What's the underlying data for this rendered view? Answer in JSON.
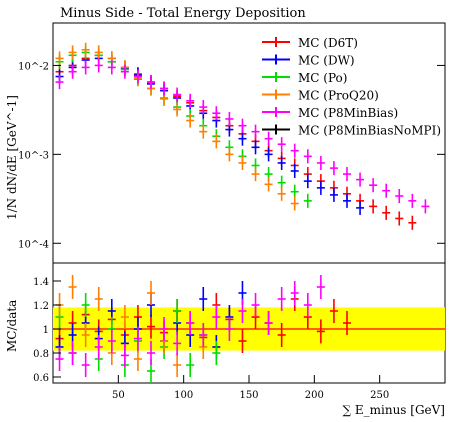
{
  "chart_data": [
    {
      "type": "scatter",
      "title": "Minus Side - Total Energy Deposition",
      "ylabel": "1/N dN/dE [GeV^-1]",
      "yscale": "log",
      "ylim": [
        6e-05,
        0.03
      ],
      "xlim": [
        0,
        300
      ],
      "yticks": [
        {
          "value": 0.0001,
          "label": "10^-4"
        },
        {
          "value": 0.001,
          "label": "10^-3"
        },
        {
          "value": 0.01,
          "label": "10^-2"
        }
      ],
      "legend_position": "top-right",
      "series": [
        {
          "name": "MC (D6T)",
          "color": "#ff0000",
          "x": [
            5,
            15,
            25,
            35,
            45,
            55,
            65,
            75,
            85,
            95,
            105,
            115,
            125,
            135,
            145,
            155,
            165,
            175,
            185,
            195,
            205,
            215,
            225,
            235,
            245,
            255,
            265,
            275
          ],
          "values": [
            0.0085,
            0.01,
            0.012,
            0.013,
            0.012,
            0.0095,
            0.008,
            0.0065,
            0.0055,
            0.0045,
            0.0038,
            0.0031,
            0.0026,
            0.0021,
            0.0017,
            0.0014,
            0.0011,
            0.0009,
            0.00075,
            0.0006,
            0.0005,
            0.00042,
            0.00036,
            0.0003,
            0.00026,
            0.00022,
            0.00019,
            0.00017
          ]
        },
        {
          "name": "MC (DW)",
          "color": "#0000ff",
          "x": [
            5,
            15,
            25,
            35,
            45,
            55,
            65,
            75,
            85,
            95,
            105,
            115,
            125,
            135,
            145,
            155,
            165,
            175,
            185,
            195,
            205,
            215,
            225,
            235
          ],
          "values": [
            0.0075,
            0.0095,
            0.0115,
            0.012,
            0.011,
            0.0092,
            0.0078,
            0.0062,
            0.0052,
            0.0043,
            0.0035,
            0.0029,
            0.0024,
            0.0019,
            0.0015,
            0.0012,
            0.001,
            0.0008,
            0.00065,
            0.0005,
            0.00042,
            0.00035,
            0.0003,
            0.00025
          ]
        },
        {
          "name": "MC (Po)",
          "color": "#00dd00",
          "x": [
            5,
            15,
            25,
            35,
            45,
            55,
            65,
            75,
            85,
            95,
            105,
            115,
            125,
            135,
            145,
            155,
            165,
            175,
            185,
            195
          ],
          "values": [
            0.011,
            0.013,
            0.014,
            0.013,
            0.011,
            0.009,
            0.007,
            0.0055,
            0.0043,
            0.0034,
            0.0027,
            0.0021,
            0.0016,
            0.0012,
            0.00095,
            0.00075,
            0.0006,
            0.00048,
            0.00038,
            0.0003
          ]
        },
        {
          "name": "MC (ProQ20)",
          "color": "#ff8000",
          "x": [
            5,
            15,
            25,
            35,
            45,
            55,
            65,
            75,
            85,
            95,
            105,
            115,
            125,
            135,
            145,
            155,
            165,
            175,
            185
          ],
          "values": [
            0.012,
            0.014,
            0.015,
            0.014,
            0.012,
            0.0095,
            0.0072,
            0.0055,
            0.0042,
            0.0032,
            0.0024,
            0.0018,
            0.0014,
            0.001,
            0.0008,
            0.0006,
            0.00046,
            0.00036,
            0.00028
          ]
        },
        {
          "name": "MC (P8MinBias)",
          "color": "#ff00ff",
          "x": [
            5,
            15,
            25,
            35,
            45,
            55,
            65,
            75,
            85,
            95,
            105,
            115,
            125,
            135,
            145,
            155,
            165,
            175,
            185,
            195,
            205,
            215,
            225,
            235,
            245,
            255,
            265,
            275,
            285
          ],
          "values": [
            0.0065,
            0.0085,
            0.0095,
            0.01,
            0.0095,
            0.0085,
            0.0075,
            0.0065,
            0.0055,
            0.0047,
            0.004,
            0.0034,
            0.0029,
            0.0025,
            0.0021,
            0.0018,
            0.0015,
            0.0013,
            0.0011,
            0.00095,
            0.0008,
            0.0007,
            0.0006,
            0.00052,
            0.00045,
            0.00039,
            0.00034,
            0.0003,
            0.00026
          ]
        },
        {
          "name": "MC (P8MinBiasNoMPI)",
          "color": "#000000",
          "x": [],
          "values": []
        }
      ]
    },
    {
      "type": "scatter",
      "ylabel": "MC/data",
      "xlabel": "∑ E_minus [GeV]",
      "xlim": [
        0,
        300
      ],
      "ylim": [
        0.55,
        1.55
      ],
      "xticks": [
        50,
        100,
        150,
        200,
        250
      ],
      "yticks": [
        0.6,
        0.8,
        1,
        1.2,
        1.4
      ],
      "reference_line": 1,
      "reference_color": "#ff0000",
      "band_color": "#ffff00",
      "series": [
        {
          "name": "MC (D6T)",
          "color": "#ff0000",
          "x": [
            5,
            15,
            25,
            35,
            45,
            55,
            65,
            75,
            85,
            95,
            105,
            115,
            125,
            135,
            145,
            155,
            165,
            175,
            185,
            195,
            205,
            215,
            225
          ],
          "values": [
            0.92,
            1.05,
            1.12,
            0.98,
            1.08,
            0.95,
            1.1,
            1.02,
            0.97,
            1.15,
            1.05,
            0.93,
            1.2,
            1.08,
            0.9,
            1.1,
            1.05,
            0.95,
            1.25,
            1.1,
            0.98,
            1.15,
            1.05
          ]
        },
        {
          "name": "MC (DW)",
          "color": "#0000ff",
          "x": [
            5,
            15,
            25,
            35,
            45,
            55,
            65,
            75,
            85,
            95,
            105,
            115,
            125,
            135,
            145
          ],
          "values": [
            0.85,
            0.95,
            1.05,
            0.92,
            1.15,
            0.88,
            1.0,
            1.2,
            0.9,
            1.05,
            0.95,
            1.25,
            0.85,
            1.1,
            1.3
          ]
        },
        {
          "name": "MC (Po)",
          "color": "#00dd00",
          "x": [
            5,
            15,
            25,
            35,
            45,
            55,
            65,
            75,
            85,
            95,
            105,
            115,
            125
          ],
          "values": [
            1.1,
            0.8,
            1.2,
            0.75,
            1.0,
            0.7,
            0.9,
            0.65,
            0.85,
            1.15,
            0.7,
            0.95,
            0.8
          ]
        },
        {
          "name": "MC (ProQ20)",
          "color": "#ff8000",
          "x": [
            5,
            15,
            25,
            35,
            45,
            55,
            65,
            75,
            85,
            95,
            105,
            115
          ],
          "values": [
            1.2,
            1.35,
            0.95,
            1.25,
            0.8,
            1.1,
            0.75,
            1.3,
            0.9,
            0.7,
            1.05,
            0.85
          ]
        },
        {
          "name": "MC (P8MinBias)",
          "color": "#ff00ff",
          "x": [
            5,
            15,
            25,
            35,
            45,
            55,
            65,
            75,
            85,
            95,
            105,
            115,
            125,
            135,
            145,
            155,
            165,
            175,
            185,
            195,
            205
          ],
          "values": [
            0.75,
            0.8,
            0.7,
            0.85,
            0.9,
            0.78,
            0.92,
            0.8,
            1.0,
            0.88,
            1.05,
            0.95,
            1.1,
            1.0,
            1.15,
            1.2,
            1.05,
            1.25,
            1.3,
            1.2,
            1.35
          ]
        }
      ]
    }
  ]
}
